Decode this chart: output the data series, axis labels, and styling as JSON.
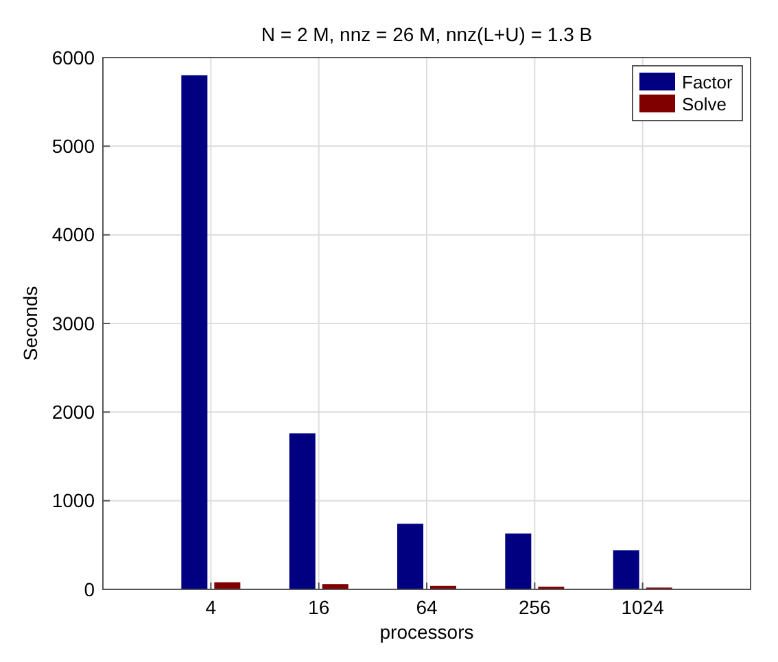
{
  "chart_data": {
    "type": "bar",
    "title": "N = 2 M, nnz = 26 M, nnz(L+U) = 1.3 B",
    "xlabel": "processors",
    "ylabel": "Seconds",
    "categories": [
      "4",
      "16",
      "64",
      "256",
      "1024"
    ],
    "series": [
      {
        "name": "Factor",
        "color": "#000080",
        "values": [
          5800,
          1760,
          740,
          630,
          440
        ]
      },
      {
        "name": "Solve",
        "color": "#800000",
        "values": [
          80,
          60,
          40,
          30,
          20
        ]
      }
    ],
    "ylim": [
      0,
      6000
    ],
    "yticks": [
      0,
      1000,
      2000,
      3000,
      4000,
      5000,
      6000
    ],
    "grid": true,
    "legend": "top right"
  }
}
